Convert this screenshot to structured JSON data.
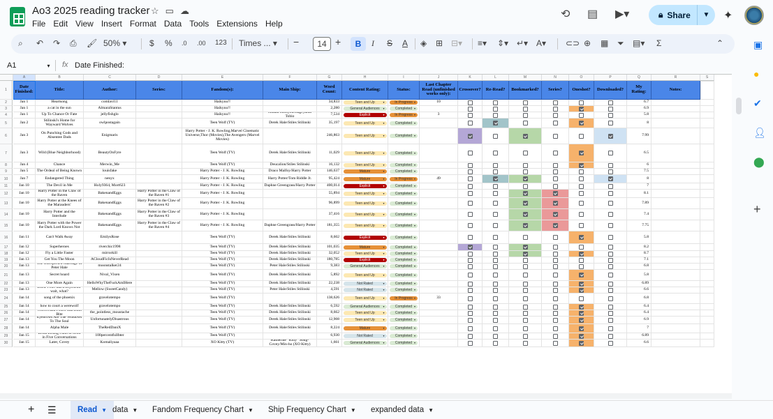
{
  "app": {
    "title": "Ao3 2025 reading tracker",
    "menu": [
      "File",
      "Edit",
      "View",
      "Insert",
      "Format",
      "Data",
      "Tools",
      "Extensions",
      "Help"
    ],
    "share_label": "Share"
  },
  "toolbar": {
    "zoom": "50%",
    "currency": "$",
    "percent": "%",
    "decimals_decrease": ".0",
    "decimals_increase": ".00",
    "number_format": "123",
    "font": "Times ...",
    "font_size": "14",
    "bold": "B",
    "italic": "I"
  },
  "formula_bar": {
    "cell_ref": "A1",
    "fx": "fx",
    "value": "Date Finished:"
  },
  "columns": [
    "A",
    "B",
    "C",
    "D",
    "E",
    "F",
    "G",
    "H",
    "I",
    "J",
    "K",
    "L",
    "M",
    "N",
    "O",
    "P",
    "Q",
    "R",
    "S"
  ],
  "headers": [
    "Date Finished:",
    "Title:",
    "Author:",
    "Series:",
    "Fandom(s):",
    "Main Ship:",
    "Word Count:",
    "Content Rating:",
    "Status:",
    "Last Chapter Read (unfinished works only):",
    "Crossover?",
    "Re-Read?",
    "Bookmarked?",
    "Series?",
    "Oneshot?",
    "Downloaded?",
    "My Rating:",
    "Notes:",
    ""
  ],
  "rows": [
    {
      "num": "2",
      "date": "Jan 1",
      "title": "Heartsong",
      "author": "comlavi11",
      "series": "",
      "fandom": "Haikyuu!!",
      "ship": "",
      "words": "34,833",
      "rating": "Teen and Up",
      "status": "In Progress",
      "ch": "10",
      "cb": [
        0,
        0,
        0,
        0,
        0,
        0
      ],
      "my": "6.7"
    },
    {
      "num": "3",
      "date": "Jan 1",
      "title": "a cat in the sun",
      "author": "AlmaraStantus",
      "series": "",
      "fandom": "Haikyuu!!",
      "ship": "",
      "words": "2,280",
      "rating": "General Audiences",
      "status": "Completed",
      "ch": "",
      "cb": [
        0,
        0,
        0,
        0,
        1,
        0
      ],
      "my": "6.9"
    },
    {
      "num": "4",
      "date": "Jan 1",
      "title": "Up To Chance Or Fate",
      "author": "jellyfishglo",
      "series": "",
      "fandom": "Haikyuu!!",
      "ship": "Hinata Shouyou/Kageyama Tobio",
      "words": "7,534",
      "rating": "Explicit",
      "status": "In Progress",
      "ch": "3",
      "cb": [
        0,
        0,
        0,
        0,
        0,
        0
      ],
      "my": "5.8"
    },
    {
      "num": "5",
      "date": "Jan 2",
      "title": "Stilinski's Home for Wayward Wolves",
      "author": "owlpostagain",
      "series": "",
      "fandom": "Teen Wolf (TV)",
      "ship": "Derek Hale/Stiles Stilinski",
      "words": "35,197",
      "rating": "Teen and Up",
      "status": "Completed",
      "ch": "",
      "cb": [
        0,
        1,
        0,
        0,
        1,
        0
      ],
      "my": "8"
    },
    {
      "num": "6",
      "date": "Jan 3",
      "title": "On Punching Gods and Absentee Dads",
      "author": "Enigmaris",
      "series": "",
      "fandom": "Harry Potter - J. K. Rowling,Marvel Cinematic Universe,Thor (Movies),The Avengers (Marvel Movies)",
      "ship": "",
      "words": "246,863",
      "rating": "Teen and Up",
      "status": "Completed",
      "ch": "",
      "cb": [
        1,
        0,
        1,
        0,
        0,
        1
      ],
      "my": "7.99"
    },
    {
      "num": "7",
      "date": "Jan 3",
      "title": "Wild (Blue Neighborhood)",
      "author": "BeautyOnFyre",
      "series": "",
      "fandom": "Teen Wolf (TV)",
      "ship": "Derek Hale/Stiles Stilinski",
      "words": "11,029",
      "rating": "Teen and Up",
      "status": "Completed",
      "ch": "",
      "cb": [
        0,
        0,
        0,
        0,
        1,
        0
      ],
      "my": "6.5"
    },
    {
      "num": "8",
      "date": "Jan 4",
      "title": "Chance",
      "author": "Merwin_Me",
      "series": "",
      "fandom": "Teen Wolf (TV)",
      "ship": "Deucalion/Stiles Stilinski",
      "words": "16,132",
      "rating": "Teen and Up",
      "status": "Completed",
      "ch": "",
      "cb": [
        0,
        0,
        0,
        0,
        1,
        0
      ],
      "my": "6"
    },
    {
      "num": "9",
      "date": "Jan 5",
      "title": "The Ordeal of Being Known",
      "author": "louisfake",
      "series": "",
      "fandom": "Harry Potter - J. K. Rowling",
      "ship": "Draco Malfoy/Harry Potter",
      "words": "146,637",
      "rating": "Mature",
      "status": "Completed",
      "ch": "",
      "cb": [
        0,
        0,
        0,
        0,
        0,
        0
      ],
      "my": "7.5"
    },
    {
      "num": "10",
      "date": "Jan 7",
      "title": "Endangered Thing",
      "author": "nenyx",
      "series": "",
      "fandom": "Harry Potter - J. K. Rowling",
      "ship": "Harry Potter/Tom Riddle Jr.",
      "words": "95,424",
      "rating": "Mature",
      "status": "In Progress",
      "ch": "49",
      "cb": [
        0,
        1,
        1,
        0,
        0,
        1
      ],
      "my": "8"
    },
    {
      "num": "11",
      "date": "Jan 10",
      "title": "The Devil in Me",
      "author": "Holy9364, Mort623",
      "series": "",
      "fandom": "Harry Potter - J. K. Rowling",
      "ship": "Daphne Greengrass/Harry Potter",
      "words": "400,014",
      "rating": "Explicit",
      "status": "Completed",
      "ch": "",
      "cb": [
        0,
        0,
        0,
        0,
        0,
        0
      ],
      "my": "7"
    },
    {
      "num": "12",
      "date": "Jan 10",
      "title": "Harry Potter in the Claw of the Raven",
      "author": "BakenandEggs",
      "series": "Harry Potter in the Claw of the Raven #1",
      "fandom": "Harry Potter - J. K. Rowling",
      "ship": "",
      "words": "55,894",
      "rating": "Teen and Up",
      "status": "Completed",
      "ch": "",
      "cb": [
        0,
        0,
        1,
        1,
        0,
        0
      ],
      "my": "8.1"
    },
    {
      "num": "13",
      "date": "Jan 10",
      "title": "Harry Potter at the Knees of the Marauders'",
      "author": "BakenandEggs",
      "series": "Harry Potter in the Claw of the Raven #2",
      "fandom": "Harry Potter - J. K. Rowling",
      "ship": "",
      "words": "96,899",
      "rating": "Teen and Up",
      "status": "Completed",
      "ch": "",
      "cb": [
        0,
        0,
        1,
        1,
        0,
        0
      ],
      "my": "7.89"
    },
    {
      "num": "14",
      "date": "Jan 10",
      "title": "Harry Potter and the Interlude",
      "author": "BakenandEggs",
      "series": "Harry Potter in the Claw of the Raven #3",
      "fandom": "Harry Potter - J. K. Rowling",
      "ship": "",
      "words": "37,416",
      "rating": "Teen and Up",
      "status": "Completed",
      "ch": "",
      "cb": [
        0,
        0,
        1,
        1,
        0,
        0
      ],
      "my": "7.4"
    },
    {
      "num": "15",
      "date": "Jan 10",
      "title": "Harry Potter with the Power the Dark Lord Knows Not",
      "author": "BakenandEggs",
      "series": "Harry Potter in the Claw of the Raven #4",
      "fandom": "Harry Potter - J. K. Rowling",
      "ship": "Daphne Greengrass/Harry Potter",
      "words": "181,355",
      "rating": "Teen and Up",
      "status": "Completed",
      "ch": "",
      "cb": [
        0,
        0,
        1,
        1,
        0,
        0
      ],
      "my": "7.75"
    },
    {
      "num": "16",
      "date": "Jan 11",
      "title": "Can't Walk Away",
      "author": "EmilysRose",
      "series": "",
      "fandom": "Teen Wolf (TV)",
      "ship": "Derek Hale/Stiles Stilinski",
      "words": "8,602",
      "rating": "Explicit",
      "status": "Completed",
      "ch": "",
      "cb": [
        0,
        0,
        0,
        0,
        1,
        0
      ],
      "my": "5.8"
    },
    {
      "num": "17",
      "date": "Jan 12",
      "title": "Superheroes",
      "author": "riverchic1998",
      "series": "",
      "fandom": "Teen Wolf (TV)",
      "ship": "Derek Hale/Stiles Stilinski",
      "words": "101,035",
      "rating": "Mature",
      "status": "Completed",
      "ch": "",
      "cb": [
        1,
        0,
        1,
        0,
        0,
        0
      ],
      "my": "8.2"
    },
    {
      "num": "18",
      "date": "Jan 12",
      "title": "Fly a Little Faster",
      "author": "mirrorkill",
      "series": "",
      "fandom": "Teen Wolf (TV)",
      "ship": "Derek Hale/Stiles Stilinski",
      "words": "32,052",
      "rating": "Teen and Up",
      "status": "Completed",
      "ch": "",
      "cb": [
        0,
        0,
        1,
        0,
        1,
        0
      ],
      "my": "8.7"
    },
    {
      "num": "19",
      "date": "Jan 13",
      "title": "Get You The Moon",
      "author": "ACloudFicIsNeverRead",
      "series": "",
      "fandom": "Teen Wolf (TV)",
      "ship": "Derek Hale/Stiles Stilinski",
      "words": "180,785",
      "rating": "Explicit",
      "status": "Completed",
      "ch": "",
      "cb": [
        0,
        0,
        0,
        0,
        0,
        0
      ],
      "my": "7.1"
    },
    {
      "num": "20",
      "date": "Jan 13",
      "title": "The Unexpected Marriage of Peter Hale",
      "author": "moonstalker24",
      "series": "",
      "fandom": "Teen Wolf (TV)",
      "ship": "Peter Hale/Stiles Stilinski",
      "words": "9,383",
      "rating": "General Audiences",
      "status": "Completed",
      "ch": "",
      "cb": [
        0,
        0,
        0,
        0,
        0,
        0
      ],
      "my": "6.8"
    },
    {
      "num": "21",
      "date": "Jan 13",
      "title": "Secret hoard",
      "author": "Nival_Vixen",
      "series": "",
      "fandom": "Teen Wolf (TV)",
      "ship": "Derek Hale/Stiles Stilinski",
      "words": "5,892",
      "rating": "Teen and Up",
      "status": "Completed",
      "ch": "",
      "cb": [
        0,
        0,
        0,
        0,
        1,
        0
      ],
      "my": "5.8"
    },
    {
      "num": "22",
      "date": "Jan 13",
      "title": "One More Again",
      "author": "HelloWhyTheFuckAmIHere",
      "series": "",
      "fandom": "Teen Wolf (TV)",
      "ship": "Derek Hale/Stiles Stilinski",
      "words": "22,238",
      "rating": "Not Rated",
      "status": "Completed",
      "ch": "",
      "cb": [
        0,
        0,
        0,
        0,
        1,
        0
      ],
      "my": "6.89"
    },
    {
      "num": "23",
      "date": "Jan 13",
      "title": "Uncle Peter has a boyfriend- wait, what?",
      "author": "Mellow (SweetCandy)",
      "series": "",
      "fandom": "Teen Wolf (TV)",
      "ship": "Peter Hale/Stiles Stilinski",
      "words": "4,591",
      "rating": "Not Rated",
      "status": "Completed",
      "ch": "",
      "cb": [
        0,
        0,
        0,
        0,
        1,
        0
      ],
      "my": "6.6"
    },
    {
      "num": "24",
      "date": "Jan 14",
      "title": "song of the phoenix",
      "author": "gravelotempo",
      "series": "",
      "fandom": "Teen Wolf (TV)",
      "ship": "",
      "words": "138,626",
      "rating": "Teen and Up",
      "status": "In Progress",
      "ch": "33",
      "cb": [
        0,
        0,
        0,
        0,
        0,
        0
      ],
      "my": "6.8"
    },
    {
      "num": "25",
      "date": "Jan 14",
      "title": "how to court a werewolf",
      "author": "gravelotempo",
      "series": "",
      "fandom": "Teen Wolf (TV)",
      "ship": "Derek Hale/Stiles Stilinski",
      "words": "6,592",
      "rating": "General Audiences",
      "status": "Completed",
      "ch": "",
      "cb": [
        0,
        0,
        0,
        0,
        1,
        0
      ],
      "my": "6.4"
    },
    {
      "num": "26",
      "date": "Jan 14",
      "title": "Wolves and Foxes Can Both Bite",
      "author": "the_pointless_moustache",
      "series": "",
      "fandom": "Teen Wolf (TV)",
      "ship": "Derek Hale/Stiles Stilinski",
      "words": "8,662",
      "rating": "Teen and Up",
      "status": "Completed",
      "ch": "",
      "cb": [
        0,
        0,
        0,
        0,
        1,
        0
      ],
      "my": "6.4"
    },
    {
      "num": "27",
      "date": "Jan 14",
      "title": "Eyebrows Are The Windows To The Soul",
      "author": "UnfortunatelyDisastrous",
      "series": "",
      "fandom": "Teen Wolf (TV)",
      "ship": "Derek Hale/Stiles Stilinski",
      "words": "12,908",
      "rating": "Teen and Up",
      "status": "Completed",
      "ch": "",
      "cb": [
        0,
        0,
        0,
        0,
        1,
        0
      ],
      "my": "6.9"
    },
    {
      "num": "28",
      "date": "Jan 14",
      "title": "Alpha Male",
      "author": "TheRedDaniX",
      "series": "",
      "fandom": "Teen Wolf (TV)",
      "ship": "Derek Hale/Stiles Stilinski",
      "words": "8,224",
      "rating": "Mature",
      "status": "Completed",
      "ch": "",
      "cb": [
        0,
        0,
        0,
        0,
        1,
        0
      ],
      "my": "7"
    },
    {
      "num": "29",
      "date": "Jan 15",
      "title": "Betsa Losing Faith in Scott in Five Conversations",
      "author": "100percentfullbter",
      "series": "",
      "fandom": "Teen Wolf (TV)",
      "ship": "",
      "words": "6,930",
      "rating": "Not Rated",
      "status": "Completed",
      "ch": "",
      "cb": [
        0,
        0,
        0,
        0,
        1,
        0
      ],
      "my": "6.89"
    },
    {
      "num": "30",
      "date": "Jan 15",
      "title": "Later, Covey",
      "author": "Komaliyaaa",
      "series": "",
      "fandom": "XO Kitty (TV)",
      "ship": "Katherine \"Kitty\" Song-Covey/Min-ho (XO Kitty)",
      "words": "1,661",
      "rating": "General Audiences",
      "status": "Completed",
      "ch": "",
      "cb": [
        0,
        0,
        0,
        0,
        1,
        0
      ],
      "my": "6.6"
    }
  ],
  "rating_colors": {
    "Teen and Up": "#fce8b2",
    "General Audiences": "#d9ead3",
    "Explicit": "#b10202",
    "Mature": "#e69138",
    "Not Rated": "#d5e4ea"
  },
  "status_colors": {
    "Completed": "#d9ead3",
    "In Progress": "#e69138"
  },
  "tabs": [
    {
      "label": "Read",
      "active": true
    },
    {
      "label": "data"
    },
    {
      "label": "Fandom Frequency Chart"
    },
    {
      "label": "Ship Frequency Chart"
    },
    {
      "label": "expanded data"
    }
  ]
}
